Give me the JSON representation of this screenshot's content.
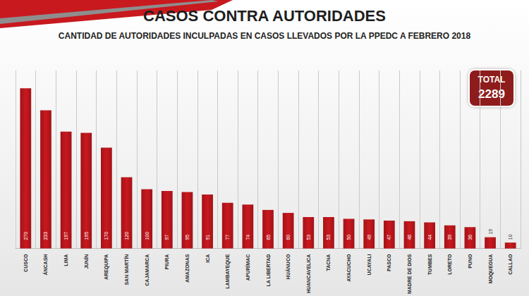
{
  "chart_data": {
    "type": "bar",
    "title": "CASOS CONTRA AUTORIDADES",
    "subtitle": "CANTIDAD DE AUTORIDADES INCULPADAS EN CASOS LLEVADOS POR LA PPEDC A FEBRERO 2018",
    "categories": [
      "CUSCO",
      "ÁNCASH",
      "LIMA",
      "JUNÍN",
      "AREQUIPA",
      "SAN MARTÍN",
      "CAJAMARCA",
      "PIURA",
      "AMAZONAS",
      "ICA",
      "LAMBAYEQUE",
      "APURÍMAC",
      "LA LIBERTAD",
      "HUÁNUCO",
      "HUANCAVELICA",
      "TACNA",
      "AYACUCHO",
      "UCAYALI",
      "PASCO",
      "MADRE DE DIOS",
      "TUMBES",
      "LORETO",
      "PUNO",
      "MOQUEGUA",
      "CALLAO"
    ],
    "values": [
      270,
      233,
      197,
      195,
      170,
      120,
      100,
      97,
      95,
      91,
      77,
      74,
      65,
      60,
      53,
      53,
      50,
      49,
      47,
      46,
      44,
      39,
      36,
      19,
      10
    ],
    "color": "#c8191f",
    "ylim": [
      0,
      300
    ],
    "grid": true,
    "data_labels": true,
    "tick_labels": "x",
    "annotation": {
      "text": "TOTAL",
      "value": 2289
    }
  }
}
